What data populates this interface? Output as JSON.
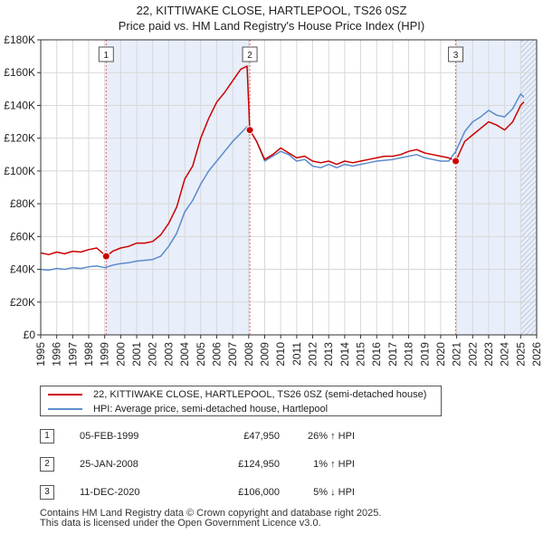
{
  "chart_data": {
    "type": "line",
    "title": "22, KITTIWAKE CLOSE, HARTLEPOOL, TS26 0SZ",
    "subtitle": "Price paid vs. HM Land Registry's House Price Index (HPI)",
    "xlim": [
      1995,
      2026
    ],
    "ylim": [
      0,
      180000
    ],
    "x_ticks": [
      1995,
      1996,
      1997,
      1998,
      1999,
      2000,
      2001,
      2002,
      2003,
      2004,
      2005,
      2006,
      2007,
      2008,
      2009,
      2010,
      2011,
      2012,
      2013,
      2014,
      2015,
      2016,
      2017,
      2018,
      2019,
      2020,
      2021,
      2022,
      2023,
      2024,
      2025,
      2026
    ],
    "y_ticks": [
      0,
      20000,
      40000,
      60000,
      80000,
      100000,
      120000,
      140000,
      160000,
      180000
    ],
    "y_tick_labels": [
      "£0",
      "£20K",
      "£40K",
      "£60K",
      "£80K",
      "£100K",
      "£120K",
      "£140K",
      "£160K",
      "£180K"
    ],
    "shaded_periods": [
      {
        "from": 1999.09,
        "to": 2008.07
      },
      {
        "from": 2020.94,
        "to": 2026.0
      }
    ],
    "hatch_from": 2025.0,
    "series": [
      {
        "name": "22, KITTIWAKE CLOSE, HARTLEPOOL, TS26 0SZ (semi-detached house)",
        "color": "#cc0000",
        "x": [
          1995.0,
          1995.5,
          1996.0,
          1996.5,
          1997.0,
          1997.5,
          1998.0,
          1998.5,
          1999.09,
          1999.5,
          2000.0,
          2000.5,
          2001.0,
          2001.5,
          2002.0,
          2002.5,
          2003.0,
          2003.5,
          2004.0,
          2004.5,
          2005.0,
          2005.5,
          2006.0,
          2006.5,
          2007.0,
          2007.5,
          2007.9,
          2008.07,
          2008.5,
          2009.0,
          2009.5,
          2010.0,
          2010.5,
          2011.0,
          2011.5,
          2012.0,
          2012.5,
          2013.0,
          2013.5,
          2014.0,
          2014.5,
          2015.0,
          2015.5,
          2016.0,
          2016.5,
          2017.0,
          2017.5,
          2018.0,
          2018.5,
          2019.0,
          2019.5,
          2020.0,
          2020.5,
          2020.94,
          2021.5,
          2022.0,
          2022.5,
          2023.0,
          2023.5,
          2024.0,
          2024.5,
          2025.0,
          2025.2
        ],
        "y": [
          50000,
          49000,
          50500,
          49500,
          51000,
          50500,
          52000,
          53000,
          47950,
          51000,
          53000,
          54000,
          56000,
          56000,
          57000,
          61000,
          68000,
          78000,
          95000,
          103000,
          120000,
          132000,
          142000,
          148000,
          155000,
          162000,
          164000,
          124950,
          118000,
          107000,
          110000,
          114000,
          111000,
          108000,
          109000,
          106000,
          105000,
          106000,
          104000,
          106000,
          105000,
          106000,
          107000,
          108000,
          109000,
          109000,
          110000,
          112000,
          113000,
          111000,
          110000,
          109000,
          108000,
          106000,
          118000,
          122000,
          126000,
          130000,
          128000,
          125000,
          130000,
          140000,
          142000
        ]
      },
      {
        "name": "HPI: Average price, semi-detached house, Hartlepool",
        "color": "#5b8ccc",
        "x": [
          1995.0,
          1995.5,
          1996.0,
          1996.5,
          1997.0,
          1997.5,
          1998.0,
          1998.5,
          1999.0,
          1999.5,
          2000.0,
          2000.5,
          2001.0,
          2001.5,
          2002.0,
          2002.5,
          2003.0,
          2003.5,
          2004.0,
          2004.5,
          2005.0,
          2005.5,
          2006.0,
          2006.5,
          2007.0,
          2007.5,
          2007.9,
          2008.07,
          2008.5,
          2009.0,
          2009.5,
          2010.0,
          2010.5,
          2011.0,
          2011.5,
          2012.0,
          2012.5,
          2013.0,
          2013.5,
          2014.0,
          2014.5,
          2015.0,
          2015.5,
          2016.0,
          2016.5,
          2017.0,
          2017.5,
          2018.0,
          2018.5,
          2019.0,
          2019.5,
          2020.0,
          2020.5,
          2020.94,
          2021.5,
          2022.0,
          2022.5,
          2023.0,
          2023.5,
          2024.0,
          2024.5,
          2025.0,
          2025.2
        ],
        "y": [
          40000,
          39500,
          40500,
          40000,
          41000,
          40500,
          41500,
          42000,
          41000,
          42500,
          43500,
          44000,
          45000,
          45500,
          46000,
          48000,
          54000,
          62000,
          75000,
          82000,
          92000,
          100000,
          106000,
          112000,
          118000,
          123000,
          127000,
          125000,
          118000,
          106000,
          109000,
          112000,
          110000,
          106000,
          107000,
          103000,
          102000,
          104000,
          102000,
          104000,
          103000,
          104000,
          105000,
          106000,
          106500,
          107000,
          108000,
          109000,
          110000,
          108000,
          107000,
          106000,
          106000,
          112000,
          124000,
          130000,
          133000,
          137000,
          134000,
          133000,
          138000,
          147000,
          145000
        ]
      }
    ],
    "sales": [
      {
        "label": "1",
        "x": 1999.09,
        "y": 47950
      },
      {
        "label": "2",
        "x": 2008.07,
        "y": 124950
      },
      {
        "label": "3",
        "x": 2020.94,
        "y": 106000
      }
    ]
  },
  "legend": {
    "property_label": "22, KITTIWAKE CLOSE, HARTLEPOOL, TS26 0SZ (semi-detached house)",
    "hpi_label": "HPI: Average price, semi-detached house, Hartlepool",
    "property_color": "#cc0000",
    "hpi_color": "#5b8ccc"
  },
  "sales_table": [
    {
      "num": "1",
      "date": "05-FEB-1999",
      "price": "£47,950",
      "hpi": "26% ↑ HPI"
    },
    {
      "num": "2",
      "date": "25-JAN-2008",
      "price": "£124,950",
      "hpi": "1% ↑ HPI"
    },
    {
      "num": "3",
      "date": "11-DEC-2020",
      "price": "£106,000",
      "hpi": "5% ↓ HPI"
    }
  ],
  "footer": {
    "line1": "Contains HM Land Registry data © Crown copyright and database right 2025.",
    "line2": "This data is licensed under the Open Government Licence v3.0."
  }
}
